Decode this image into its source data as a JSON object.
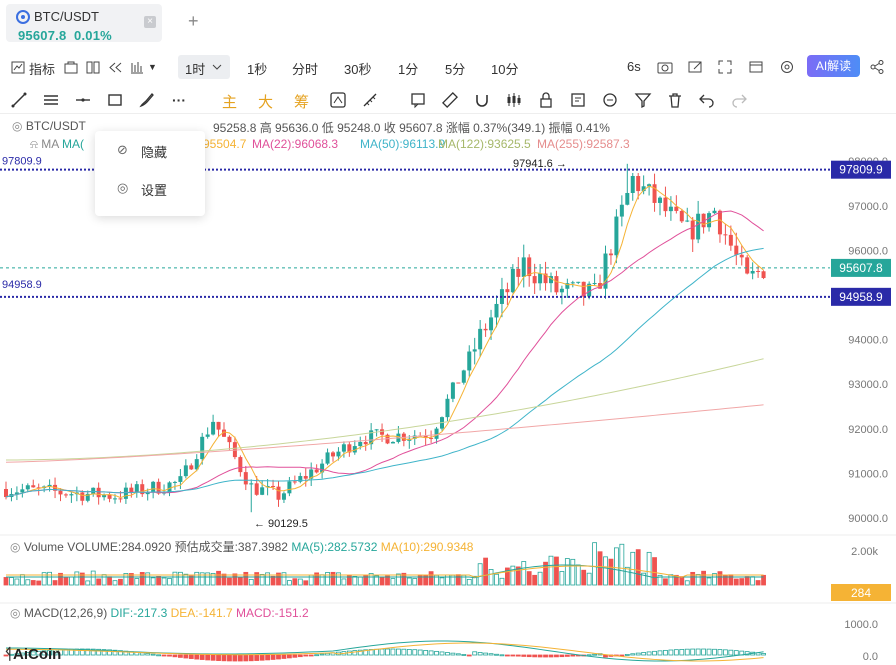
{
  "tab": {
    "symbol": "BTC/USDT",
    "price": "95607.8",
    "change": "0.01%",
    "close_icon": "×"
  },
  "toolbar": {
    "indicator": "指标",
    "selected_interval": "1时",
    "intervals": [
      "1秒",
      "分时",
      "30秒",
      "1分",
      "5分",
      "10分"
    ],
    "refresh": "6s",
    "ai_label": "AI解读"
  },
  "drawbar": {
    "main": "主",
    "big": "大",
    "chip": "筹"
  },
  "legend": {
    "symbol": "BTC/USDT",
    "ohlc": "95258.8 高 95636.0 低 95248.0 收 95607.8 涨幅 0.37%(349.1) 振幅 0.41%",
    "ma_label": "MA",
    "ma5": "95504.7",
    "ma22": "MA(22):96068.3",
    "ma50": "MA(50):96113.9",
    "ma122": "MA(122):93625.5",
    "ma255": "MA(255):92587.3",
    "volume": "Volume VOLUME:284.0920",
    "vol_est": "预估成交量:387.3982",
    "vol_ma5": "MA(5):282.5732",
    "vol_ma10": "MA(10):290.9348",
    "macd": "MACD(12,26,9)",
    "dif": "DIF:-217.3",
    "dea": "DEA:-141.7",
    "macdv": "MACD:-151.2"
  },
  "menu": {
    "hide": "隐藏",
    "settings": "设置"
  },
  "marks": {
    "high": "97941.6",
    "low": "90129.5",
    "line_top": "97809.9",
    "line_bottom": "94958.9",
    "left_top": "97809.9",
    "left_bottom": "94958.9"
  },
  "price_axis": [
    "98000.0",
    "97000.0",
    "96000.0",
    "95000.0",
    "94000.0",
    "93000.0",
    "92000.0",
    "91000.0",
    "90000.0"
  ],
  "badges": {
    "top": "97809.9",
    "current": "95607.8",
    "bottom": "94958.9",
    "volume": "284"
  },
  "vol_axis": {
    "label": "2.00k"
  },
  "macd_axis": {
    "top": "1000.0",
    "zero": "0.0"
  },
  "brand": "AiCoin",
  "colors": {
    "up": "#26a69a",
    "down": "#ef5350",
    "ma5": "#f5b335",
    "ma22": "#e0509a",
    "ma50": "#3fb4c9",
    "ma122": "#c8d69a",
    "ma255": "#f1a7a7",
    "line": "#2a2aa8"
  },
  "chart_data": {
    "type": "candlestick",
    "ylim": [
      89700,
      98300
    ],
    "high": 97941.6,
    "low": 90129.5,
    "horizontal_lines": [
      97809.9,
      94958.9
    ],
    "current_price": 95607.8
  }
}
